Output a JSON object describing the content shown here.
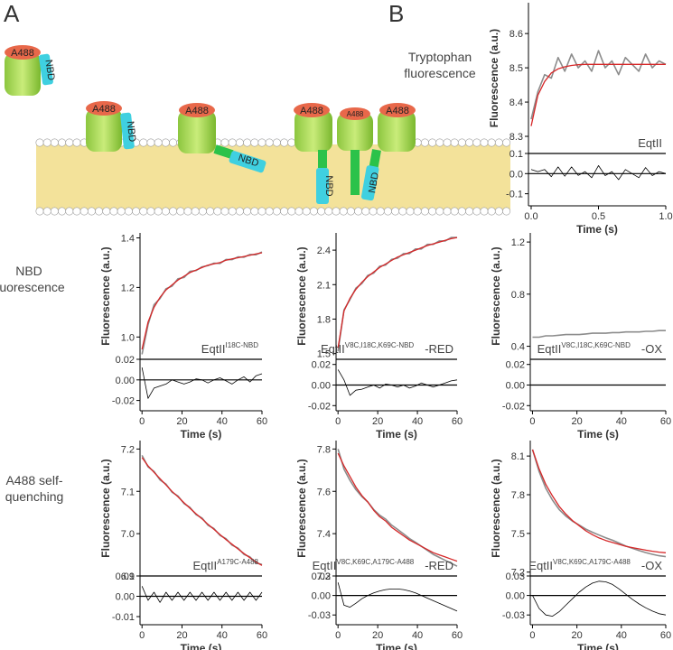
{
  "panels": [
    "A",
    "B"
  ],
  "labels": {
    "trp": [
      "Tryptophan",
      "fluorescence"
    ],
    "nbd": [
      "NBD",
      "fluorescence"
    ],
    "a488": [
      "A488 self-",
      "quenching"
    ]
  },
  "diagram": {
    "labels": [
      "A488",
      "NBD",
      "A488",
      "NBD",
      "A488",
      "NBD",
      "A488",
      "A488",
      "A488",
      "NBD",
      "NBD"
    ]
  },
  "chart_data": [
    {
      "type": "line",
      "ylabel": "Fluorescence (a.u.)",
      "xlabel": "Time (s)",
      "annotation": {
        "text": "EqtII"
      },
      "x": [
        0,
        0.05,
        0.1,
        0.15,
        0.2,
        0.25,
        0.3,
        0.35,
        0.4,
        0.45,
        0.5,
        0.55,
        0.6,
        0.65,
        0.7,
        0.75,
        0.8,
        0.85,
        0.9,
        0.95,
        1.0
      ],
      "xlim": [
        -0.02,
        1.0
      ],
      "xticks": [
        {
          "value": 0,
          "label": "0.0"
        },
        0.5,
        {
          "value": 1,
          "label": "1.0"
        }
      ],
      "ylim": [
        8.25,
        8.69
      ],
      "yticks": [
        8.3,
        8.4,
        8.5,
        8.6
      ],
      "series": [
        {
          "color": "#8c8c8c",
          "values": [
            8.35,
            8.43,
            8.48,
            8.47,
            8.53,
            8.49,
            8.54,
            8.5,
            8.52,
            8.49,
            8.55,
            8.5,
            8.52,
            8.48,
            8.53,
            8.51,
            8.49,
            8.54,
            8.5,
            8.52,
            8.51
          ]
        },
        {
          "color": "#d62728",
          "values": [
            8.33,
            8.42,
            8.46,
            8.485,
            8.497,
            8.503,
            8.507,
            8.509,
            8.51,
            8.51,
            8.51,
            8.51,
            8.51,
            8.51,
            8.51,
            8.51,
            8.51,
            8.51,
            8.51,
            8.51,
            8.51
          ]
        }
      ],
      "residual_ylim": [
        -0.16,
        0.1
      ],
      "residual_yticks": [
        0.1,
        {
          "value": 0,
          "label": "0.0"
        },
        -0.1
      ],
      "residuals": {
        "color": "#000000",
        "values": [
          0.02,
          0.01,
          0.02,
          -0.015,
          0.033,
          -0.013,
          0.033,
          -0.009,
          0.01,
          -0.02,
          0.04,
          -0.01,
          0.01,
          -0.03,
          0.02,
          0.0,
          -0.02,
          0.03,
          -0.01,
          0.01,
          0.0
        ]
      }
    },
    {
      "type": "line",
      "ylabel": "Fluorescence (a.u.)",
      "xlabel": "Time (s)",
      "annotation": {
        "text": "EqtII",
        "superscript": "I18C-NBD"
      },
      "x": [
        0,
        3,
        6,
        9,
        12,
        15,
        18,
        21,
        24,
        27,
        30,
        33,
        36,
        39,
        42,
        45,
        48,
        51,
        54,
        57,
        60
      ],
      "xlim": [
        -1,
        60
      ],
      "xticks": [
        0,
        20,
        40,
        60
      ],
      "ylim": [
        0.91,
        1.42
      ],
      "yticks": [
        {
          "value": 1,
          "label": "1.0"
        },
        1.2,
        1.4
      ],
      "series": [
        {
          "color": "#8c8c8c",
          "values": [
            0.93,
            1.05,
            1.13,
            1.155,
            1.195,
            1.205,
            1.235,
            1.24,
            1.265,
            1.268,
            1.283,
            1.288,
            1.298,
            1.297,
            1.313,
            1.312,
            1.323,
            1.322,
            1.333,
            1.332,
            1.343
          ]
        },
        {
          "color": "#d62728",
          "values": [
            0.95,
            1.06,
            1.12,
            1.16,
            1.19,
            1.21,
            1.23,
            1.245,
            1.26,
            1.27,
            1.28,
            1.29,
            1.295,
            1.3,
            1.31,
            1.315,
            1.32,
            1.325,
            1.33,
            1.335,
            1.34
          ]
        }
      ],
      "residual_ylim": [
        -0.03,
        0.02
      ],
      "residual_yticks": [
        0.02,
        {
          "value": 0,
          "label": "0.00"
        },
        -0.02
      ],
      "residuals": {
        "color": "#000000",
        "values": [
          0.012,
          -0.018,
          -0.008,
          -0.006,
          -0.004,
          0.0,
          -0.002,
          -0.004,
          -0.002,
          0.001,
          0.0,
          -0.003,
          0.0,
          0.002,
          -0.001,
          -0.004,
          0.0,
          0.003,
          -0.002,
          0.004,
          0.006
        ]
      }
    },
    {
      "type": "line",
      "ylabel": "Fluorescence (a.u.)",
      "xlabel": "Time (s)",
      "annotation": {
        "text": "EqtII",
        "superscript": "V8C,I18C,K69C-NBD",
        "suffix": "-RED"
      },
      "x": [
        0,
        3,
        6,
        9,
        12,
        15,
        18,
        21,
        24,
        27,
        30,
        33,
        36,
        39,
        42,
        45,
        48,
        51,
        54,
        57,
        60
      ],
      "xlim": [
        -1,
        60
      ],
      "xticks": [
        0,
        20,
        40,
        60
      ],
      "ylim": [
        1.45,
        2.55
      ],
      "yticks": [
        1.5,
        1.8,
        2.1,
        2.4
      ],
      "series": [
        {
          "color": "#8c8c8c",
          "values": [
            1.52,
            1.88,
            1.97,
            2.07,
            2.11,
            2.18,
            2.2,
            2.26,
            2.27,
            2.32,
            2.33,
            2.37,
            2.37,
            2.41,
            2.41,
            2.45,
            2.45,
            2.48,
            2.48,
            2.51,
            2.51
          ]
        },
        {
          "color": "#d62728",
          "values": [
            1.55,
            1.87,
            1.98,
            2.06,
            2.12,
            2.17,
            2.21,
            2.25,
            2.28,
            2.31,
            2.34,
            2.36,
            2.38,
            2.4,
            2.42,
            2.44,
            2.455,
            2.47,
            2.485,
            2.5,
            2.51
          ]
        }
      ],
      "residual_ylim": [
        -0.025,
        0.025
      ],
      "residual_yticks": [
        0.02,
        {
          "value": 0,
          "label": "0.00"
        },
        -0.02
      ],
      "residuals": {
        "color": "#000000",
        "values": [
          0.015,
          0.005,
          -0.01,
          -0.005,
          -0.004,
          -0.002,
          0.0,
          -0.003,
          0.001,
          0.0,
          -0.002,
          0.0,
          -0.003,
          -0.001,
          0.002,
          0.0,
          -0.002,
          0.0,
          0.002,
          0.004,
          0.005
        ]
      }
    },
    {
      "type": "line",
      "ylabel": "Fluorescence (a.u.)",
      "xlabel": "Time (s)",
      "annotation": {
        "text": "EqtII",
        "superscript": "V8C,I18C,K69C-NBD",
        "suffix": "-OX"
      },
      "x": [
        0,
        3,
        6,
        9,
        12,
        15,
        18,
        21,
        24,
        27,
        30,
        33,
        36,
        39,
        42,
        45,
        48,
        51,
        54,
        57,
        60
      ],
      "xlim": [
        -1,
        60
      ],
      "xticks": [
        0,
        20,
        40,
        60
      ],
      "ylim": [
        0.3,
        1.27
      ],
      "yticks": [
        0.4,
        0.8,
        1.2
      ],
      "series": [
        {
          "color": "#8c8c8c",
          "values": [
            0.47,
            0.47,
            0.48,
            0.48,
            0.485,
            0.49,
            0.49,
            0.49,
            0.495,
            0.5,
            0.5,
            0.5,
            0.505,
            0.505,
            0.51,
            0.51,
            0.51,
            0.515,
            0.515,
            0.52,
            0.52
          ]
        }
      ],
      "residual_ylim": [
        -0.025,
        0.025
      ],
      "residual_yticks": [
        0.02,
        {
          "value": 0,
          "label": "0.00"
        },
        -0.02
      ]
    },
    {
      "type": "line",
      "ylabel": "Fluorescence (a.u.)",
      "xlabel": "Time (s)",
      "annotation": {
        "text": "EqtII",
        "superscript": "A179C-A488"
      },
      "x": [
        0,
        3,
        6,
        9,
        12,
        15,
        18,
        21,
        24,
        27,
        30,
        33,
        36,
        39,
        42,
        45,
        48,
        51,
        54,
        57,
        60
      ],
      "xlim": [
        -1,
        60
      ],
      "xticks": [
        0,
        20,
        40,
        60
      ],
      "ylim": [
        6.9,
        7.22
      ],
      "yticks": [
        6.9,
        {
          "value": 7,
          "label": "7.0"
        },
        7.1,
        7.2
      ],
      "series": [
        {
          "color": "#8c8c8c",
          "values": [
            7.185,
            7.158,
            7.147,
            7.127,
            7.117,
            7.098,
            7.089,
            7.071,
            7.062,
            7.045,
            7.037,
            7.02,
            7.012,
            6.996,
            6.988,
            6.973,
            6.966,
            6.951,
            6.945,
            6.931,
            6.927
          ]
        },
        {
          "color": "#d62728",
          "values": [
            7.18,
            7.16,
            7.145,
            7.13,
            7.115,
            7.1,
            7.087,
            7.073,
            7.06,
            7.047,
            7.035,
            7.022,
            7.01,
            6.998,
            6.986,
            6.975,
            6.964,
            6.953,
            6.943,
            6.933,
            6.925
          ]
        }
      ],
      "residual_ylim": [
        -0.014,
        0.01
      ],
      "residual_yticks": [
        0.01,
        {
          "value": 0,
          "label": "0.00"
        },
        -0.01
      ],
      "residuals": {
        "color": "#000000",
        "values": [
          0.005,
          -0.002,
          0.002,
          -0.003,
          0.002,
          -0.002,
          0.002,
          -0.002,
          0.002,
          -0.002,
          0.002,
          -0.002,
          0.002,
          -0.002,
          0.002,
          -0.002,
          0.002,
          -0.002,
          0.002,
          -0.002,
          0.002
        ]
      }
    },
    {
      "type": "line",
      "ylabel": "Fluorescence (a.u.)",
      "xlabel": "Time (s)",
      "annotation": {
        "text": "EqtII",
        "superscript": "V8C,K69C,A179C-A488",
        "suffix": "-RED"
      },
      "x": [
        0,
        3,
        6,
        9,
        12,
        15,
        18,
        21,
        24,
        27,
        30,
        33,
        36,
        39,
        42,
        45,
        48,
        51,
        54,
        57,
        60
      ],
      "xlim": [
        -1,
        60
      ],
      "xticks": [
        0,
        20,
        40,
        60
      ],
      "ylim": [
        7.2,
        7.84
      ],
      "yticks": [
        7.2,
        7.4,
        7.6,
        7.8
      ],
      "series": [
        {
          "color": "#8c8c8c",
          "values": [
            7.8,
            7.705,
            7.652,
            7.608,
            7.575,
            7.55,
            7.514,
            7.487,
            7.469,
            7.44,
            7.42,
            7.399,
            7.377,
            7.359,
            7.34,
            7.321,
            7.302,
            7.288,
            7.274,
            7.26,
            7.246
          ]
        },
        {
          "color": "#d62728",
          "values": [
            7.78,
            7.72,
            7.67,
            7.62,
            7.58,
            7.55,
            7.51,
            7.48,
            7.46,
            7.43,
            7.41,
            7.39,
            7.37,
            7.355,
            7.34,
            7.325,
            7.31,
            7.3,
            7.29,
            7.28,
            7.27
          ]
        }
      ],
      "residual_ylim": [
        -0.045,
        0.03
      ],
      "residual_yticks": [
        0.03,
        {
          "value": 0,
          "label": "0.00"
        },
        -0.03
      ],
      "residuals": {
        "color": "#000000",
        "values": [
          0.02,
          -0.015,
          -0.018,
          -0.012,
          -0.005,
          0.0,
          0.004,
          0.007,
          0.009,
          0.01,
          0.01,
          0.009,
          0.007,
          0.004,
          0.0,
          -0.004,
          -0.008,
          -0.012,
          -0.016,
          -0.02,
          -0.024
        ]
      }
    },
    {
      "type": "line",
      "ylabel": "Fluorescence (a.u.)",
      "xlabel": "Time (s)",
      "annotation": {
        "text": "EqtII",
        "superscript": "V8C,K69C,A179C-A488",
        "suffix": "-OX"
      },
      "x": [
        0,
        3,
        6,
        9,
        12,
        15,
        18,
        21,
        24,
        27,
        30,
        33,
        36,
        39,
        42,
        45,
        48,
        51,
        54,
        57,
        60
      ],
      "xlim": [
        -1,
        60
      ],
      "xticks": [
        0,
        20,
        40,
        60
      ],
      "ylim": [
        7.17,
        8.22
      ],
      "yticks": [
        7.2,
        7.5,
        7.8,
        8.1
      ],
      "series": [
        {
          "color": "#8c8c8c",
          "values": [
            8.15,
            7.98,
            7.85,
            7.758,
            7.685,
            7.635,
            7.595,
            7.565,
            7.533,
            7.509,
            7.487,
            7.466,
            7.447,
            7.425,
            7.402,
            7.384,
            7.367,
            7.351,
            7.338,
            7.327,
            7.32
          ]
        },
        {
          "color": "#d62728",
          "values": [
            8.15,
            8.0,
            7.88,
            7.79,
            7.71,
            7.65,
            7.6,
            7.56,
            7.52,
            7.49,
            7.465,
            7.445,
            7.43,
            7.415,
            7.4,
            7.39,
            7.38,
            7.37,
            7.362,
            7.355,
            7.35
          ]
        }
      ],
      "residual_ylim": [
        -0.045,
        0.03
      ],
      "residual_yticks": [
        0.03,
        {
          "value": 0,
          "label": "0.00"
        },
        -0.03
      ],
      "residuals": {
        "color": "#000000",
        "values": [
          0.0,
          -0.02,
          -0.03,
          -0.032,
          -0.025,
          -0.015,
          -0.005,
          0.005,
          0.013,
          0.019,
          0.022,
          0.021,
          0.017,
          0.01,
          0.002,
          -0.006,
          -0.013,
          -0.019,
          -0.024,
          -0.028,
          -0.03
        ]
      }
    }
  ]
}
